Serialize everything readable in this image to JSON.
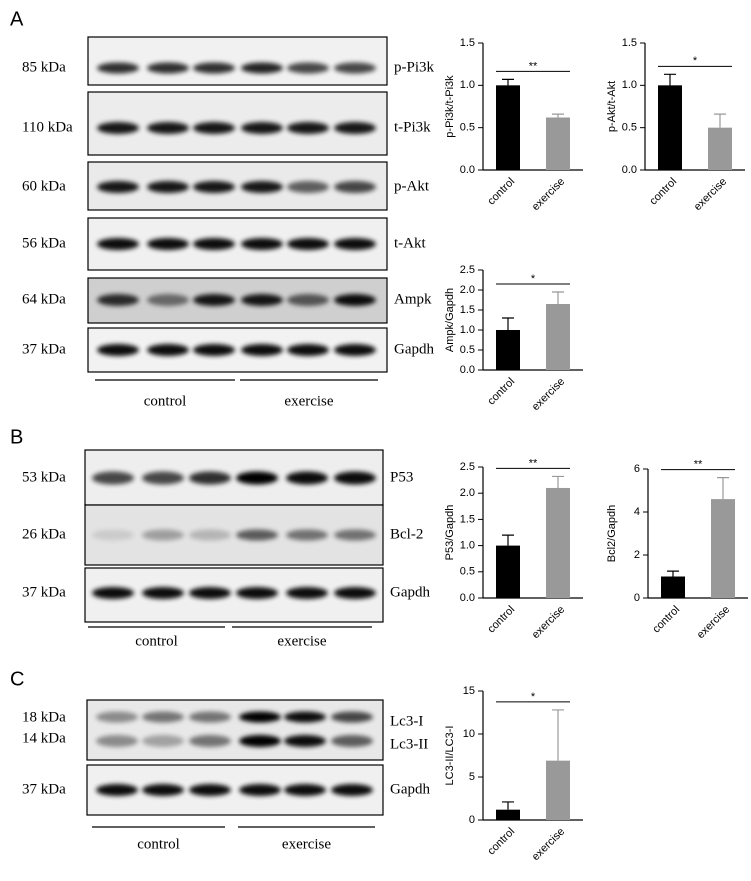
{
  "blots": [
    {
      "letter": "A",
      "groups": [
        "control",
        "exercise"
      ],
      "rows": [
        {
          "kda": "85 kDa",
          "protein": "p-Pi3k"
        },
        {
          "kda": "110 kDa",
          "protein": "t-Pi3k"
        },
        {
          "kda": "60 kDa",
          "protein": "p-Akt"
        },
        {
          "kda": "56 kDa",
          "protein": "t-Akt"
        },
        {
          "kda": "64 kDa",
          "protein": "Ampk"
        },
        {
          "kda": "37 kDa",
          "protein": "Gapdh"
        }
      ]
    },
    {
      "letter": "B",
      "groups": [
        "control",
        "exercise"
      ],
      "rows": [
        {
          "kda": "53 kDa",
          "protein": "P53"
        },
        {
          "kda": "26 kDa",
          "protein": "Bcl-2"
        },
        {
          "kda": "37 kDa",
          "protein": "Gapdh"
        }
      ]
    },
    {
      "letter": "C",
      "groups": [
        "control",
        "exercise"
      ],
      "rows": [
        {
          "kda": "18 kDa",
          "protein": "Lc3-I"
        },
        {
          "kda": "14 kDa",
          "protein": "Lc3-II"
        },
        {
          "kda": "37 kDa",
          "protein": "Gapdh"
        }
      ]
    }
  ],
  "chart_data": [
    {
      "type": "bar",
      "ylabel": "p-Pi3k/t-Pi3k",
      "categories": [
        "control",
        "exercise"
      ],
      "values": [
        1.0,
        0.62
      ],
      "errors": [
        0.07,
        0.04
      ],
      "colors": [
        "#000000",
        "#999999"
      ],
      "significance": "**",
      "ylim": [
        0,
        1.5
      ],
      "yticks": [
        {
          "value": 0,
          "label": "0.0"
        },
        {
          "value": 0.5,
          "label": "0.5"
        },
        {
          "value": 1,
          "label": "1.0"
        },
        {
          "value": 1.5,
          "label": "1.5"
        }
      ]
    },
    {
      "type": "bar",
      "ylabel": "p-Akt/t-Akt",
      "categories": [
        "control",
        "exercise"
      ],
      "values": [
        1.0,
        0.5
      ],
      "errors": [
        0.13,
        0.16
      ],
      "colors": [
        "#000000",
        "#999999"
      ],
      "significance": "*",
      "ylim": [
        0,
        1.5
      ],
      "yticks": [
        {
          "value": 0,
          "label": "0.0"
        },
        {
          "value": 0.5,
          "label": "0.5"
        },
        {
          "value": 1,
          "label": "1.0"
        },
        {
          "value": 1.5,
          "label": "1.5"
        }
      ]
    },
    {
      "type": "bar",
      "ylabel": "Ampk/Gapdh",
      "categories": [
        "control",
        "exercise"
      ],
      "values": [
        1.0,
        1.65
      ],
      "errors": [
        0.3,
        0.3
      ],
      "colors": [
        "#000000",
        "#999999"
      ],
      "significance": "*",
      "ylim": [
        0,
        2.5
      ],
      "yticks": [
        {
          "value": 0,
          "label": "0.0"
        },
        {
          "value": 0.5,
          "label": "0.5"
        },
        {
          "value": 1,
          "label": "1.0"
        },
        {
          "value": 1.5,
          "label": "1.5"
        },
        {
          "value": 2,
          "label": "2.0"
        },
        {
          "value": 2.5,
          "label": "2.5"
        }
      ]
    },
    {
      "type": "bar",
      "ylabel": "P53/Gapdh",
      "categories": [
        "control",
        "exercise"
      ],
      "values": [
        1.0,
        2.1
      ],
      "errors": [
        0.2,
        0.22
      ],
      "colors": [
        "#000000",
        "#999999"
      ],
      "significance": "**",
      "ylim": [
        0,
        2.5
      ],
      "yticks": [
        {
          "value": 0,
          "label": "0.0"
        },
        {
          "value": 0.5,
          "label": "0.5"
        },
        {
          "value": 1,
          "label": "1.0"
        },
        {
          "value": 1.5,
          "label": "1.5"
        },
        {
          "value": 2,
          "label": "2.0"
        },
        {
          "value": 2.5,
          "label": "2.5"
        }
      ]
    },
    {
      "type": "bar",
      "ylabel": "Bcl2/Gapdh",
      "categories": [
        "control",
        "exercise"
      ],
      "values": [
        1.0,
        4.6
      ],
      "errors": [
        0.25,
        1.0
      ],
      "colors": [
        "#000000",
        "#999999"
      ],
      "significance": "**",
      "ylim": [
        0,
        6
      ],
      "yticks": [
        0,
        2,
        4,
        6
      ]
    },
    {
      "type": "bar",
      "ylabel": "LC3-II/LC3-I",
      "categories": [
        "control",
        "exercise"
      ],
      "values": [
        1.2,
        6.9
      ],
      "errors": [
        0.9,
        5.9
      ],
      "colors": [
        "#000000",
        "#999999"
      ],
      "significance": "*",
      "ylim": [
        0,
        15
      ],
      "yticks": [
        0,
        5,
        10,
        15
      ]
    }
  ]
}
